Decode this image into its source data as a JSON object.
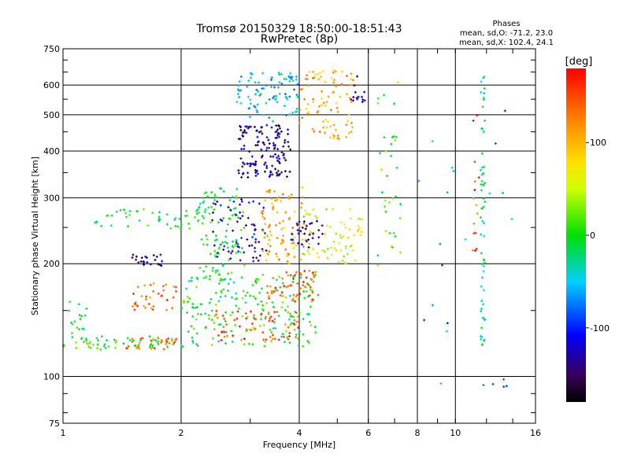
{
  "chart_data": {
    "type": "scatter",
    "title": "Tromsø 20150329 18:50:00-18:51:43",
    "subtitle": "RwPretec (8p)",
    "stats": {
      "heading": "Phases",
      "line_o": "mean, sd,O: -71.2, 23.0",
      "line_x": "mean, sd,X: 102.4, 24.1"
    },
    "xlabel": "Frequency [MHz]",
    "ylabel": "Stationary phase Virtual Height [km]",
    "x_scale": "log",
    "y_scale": "log",
    "xlim": [
      1,
      16
    ],
    "ylim": [
      75,
      750
    ],
    "x_ticks": [
      1,
      2,
      4,
      6,
      8,
      10,
      16
    ],
    "x_tick_labels": [
      "1",
      "2",
      "4",
      "6",
      "8",
      "10",
      "16"
    ],
    "y_ticks": [
      75,
      100,
      200,
      300,
      400,
      500,
      600,
      750
    ],
    "y_tick_labels": [
      "75",
      "100",
      "200",
      "300",
      "400",
      "500",
      "600",
      "750"
    ],
    "grid": true,
    "colorbar": {
      "label": "[deg]",
      "range": [
        -180,
        180
      ],
      "ticks": [
        100,
        0,
        -100
      ],
      "tick_labels": [
        "100",
        "0",
        "-100"
      ]
    },
    "trace_groups": [
      {
        "x_range": [
          1.0,
          1.9
        ],
        "y_range": [
          118,
          128
        ],
        "phase": 0,
        "count": 60
      },
      {
        "x_range": [
          1.0,
          1.15
        ],
        "y_range": [
          125,
          160
        ],
        "phase": -10,
        "count": 18
      },
      {
        "x_range": [
          1.45,
          1.95
        ],
        "y_range": [
          118,
          128
        ],
        "phase": 135,
        "count": 30
      },
      {
        "x_range": [
          1.5,
          1.95
        ],
        "y_range": [
          150,
          180
        ],
        "phase": 140,
        "count": 35
      },
      {
        "x_range": [
          1.5,
          1.8
        ],
        "y_range": [
          195,
          212
        ],
        "phase": -140,
        "count": 22
      },
      {
        "x_range": [
          1.2,
          2.2
        ],
        "y_range": [
          248,
          280
        ],
        "phase": -10,
        "count": 45
      },
      {
        "x_range": [
          2.0,
          4.5
        ],
        "y_range": [
          120,
          190
        ],
        "phase": 0,
        "count": 200
      },
      {
        "x_range": [
          2.2,
          2.9
        ],
        "y_range": [
          180,
          320
        ],
        "phase": -5,
        "count": 110
      },
      {
        "x_range": [
          2.4,
          4.0
        ],
        "y_range": [
          125,
          150
        ],
        "phase": 150,
        "count": 70
      },
      {
        "x_range": [
          3.3,
          4.5
        ],
        "y_range": [
          158,
          192
        ],
        "phase": 148,
        "count": 55
      },
      {
        "x_range": [
          2.8,
          3.8
        ],
        "y_range": [
          340,
          470
        ],
        "phase": -140,
        "count": 140
      },
      {
        "x_range": [
          2.7,
          4.0
        ],
        "y_range": [
          480,
          650
        ],
        "phase": -50,
        "count": 90
      },
      {
        "x_range": [
          4.0,
          5.5
        ],
        "y_range": [
          430,
          660
        ],
        "phase": 110,
        "count": 90
      },
      {
        "x_range": [
          2.4,
          3.3
        ],
        "y_range": [
          200,
          300
        ],
        "phase": -120,
        "count": 70
      },
      {
        "x_range": [
          3.2,
          4.2
        ],
        "y_range": [
          200,
          320
        ],
        "phase": 110,
        "count": 90
      },
      {
        "x_range": [
          4.0,
          5.8
        ],
        "y_range": [
          200,
          280
        ],
        "phase": 60,
        "count": 70
      },
      {
        "x_range": [
          3.8,
          4.6
        ],
        "y_range": [
          220,
          260
        ],
        "phase": -140,
        "count": 30
      },
      {
        "x_range": [
          5.4,
          5.9
        ],
        "y_range": [
          540,
          640
        ],
        "phase": -140,
        "count": 14
      },
      {
        "x_range": [
          6.3,
          7.3
        ],
        "y_range": [
          180,
          650
        ],
        "phase": 10,
        "count": 35
      },
      {
        "x_range": [
          11.6,
          11.9
        ],
        "y_range": [
          120,
          640
        ],
        "phase": -25,
        "count": 60
      },
      {
        "x_range": [
          11.0,
          11.5
        ],
        "y_range": [
          200,
          600
        ],
        "phase": 150,
        "count": 14
      },
      {
        "x_range": [
          8.0,
          14.0
        ],
        "y_range": [
          90,
          600
        ],
        "phase": -70,
        "count": 25
      }
    ]
  }
}
